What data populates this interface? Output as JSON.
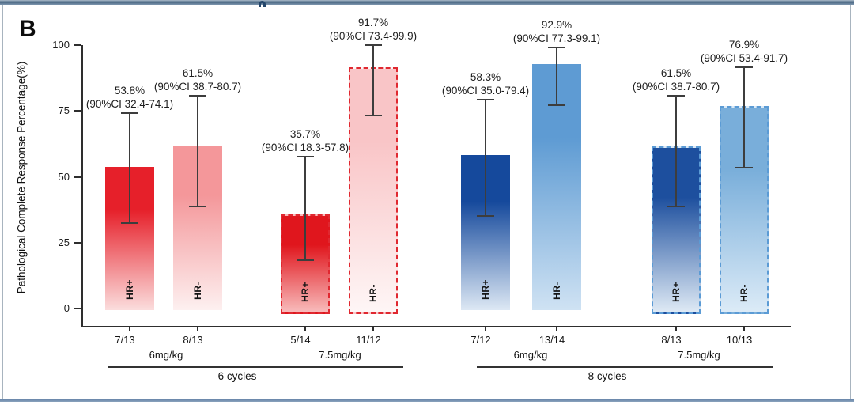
{
  "panel_label": "B",
  "frame": {
    "accent_color": "#5b7aa2",
    "artifact_note": "partially-cropped letter at top center"
  },
  "chart_data": {
    "type": "bar",
    "title": "",
    "xlabel": "",
    "ylabel": "Pathological Complete Response Percentage(%)",
    "ylim": [
      0,
      100
    ],
    "yticks": [
      0,
      25,
      50,
      75,
      100
    ],
    "grid": false,
    "legend": "none",
    "error_bar_color": "#3d3d3d",
    "ci_level": "90%CI",
    "bars": [
      {
        "group": "6 cycles",
        "dose": "6mg/kg",
        "hr_status": "HR+",
        "fraction": "7/13",
        "value_pct": 53.8,
        "ci_low": 32.4,
        "ci_high": 74.1,
        "value_label": "53.8%",
        "ci_label": "(90%CI 32.4-74.1)",
        "color_top": "#e6202a",
        "color_bottom": "#fbdddd",
        "dashed": false,
        "border_color": ""
      },
      {
        "group": "6 cycles",
        "dose": "6mg/kg",
        "hr_status": "HR-",
        "fraction": "8/13",
        "value_pct": 61.5,
        "ci_low": 38.7,
        "ci_high": 80.7,
        "value_label": "61.5%",
        "ci_label": "(90%CI 38.7-80.7)",
        "color_top": "#f4979a",
        "color_bottom": "#fdf0f0",
        "dashed": false,
        "border_color": ""
      },
      {
        "group": "6 cycles",
        "dose": "7.5mg/kg",
        "hr_status": "HR+",
        "fraction": "5/14",
        "value_pct": 35.7,
        "ci_low": 18.3,
        "ci_high": 57.8,
        "value_label": "35.7%",
        "ci_label": "(90%CI 18.3-57.8)",
        "color_top": "#e0161d",
        "color_bottom": "#f8bcbc",
        "dashed": true,
        "border_color": "#e02830"
      },
      {
        "group": "6 cycles",
        "dose": "7.5mg/kg",
        "hr_status": "HR-",
        "fraction": "11/12",
        "value_pct": 91.7,
        "ci_low": 73.4,
        "ci_high": 99.9,
        "value_label": "91.7%",
        "ci_label": "(90%CI 73.4-99.9)",
        "color_top": "#f9c5c7",
        "color_bottom": "#fef6f6",
        "dashed": true,
        "border_color": "#e02830"
      },
      {
        "group": "8 cycles",
        "dose": "6mg/kg",
        "hr_status": "HR+",
        "fraction": "7/12",
        "value_pct": 58.3,
        "ci_low": 35.0,
        "ci_high": 79.4,
        "value_label": "58.3%",
        "ci_label": "(90%CI 35.0-79.4)",
        "color_top": "#15499c",
        "color_bottom": "#dde8f4",
        "dashed": false,
        "border_color": ""
      },
      {
        "group": "8 cycles",
        "dose": "6mg/kg",
        "hr_status": "HR-",
        "fraction": "13/14",
        "value_pct": 92.9,
        "ci_low": 77.3,
        "ci_high": 99.1,
        "value_label": "92.9%",
        "ci_label": "(90%CI 77.3-99.1)",
        "color_top": "#5e9bd3",
        "color_bottom": "#cfe2f3",
        "dashed": false,
        "border_color": ""
      },
      {
        "group": "8 cycles",
        "dose": "7.5mg/kg",
        "hr_status": "HR+",
        "fraction": "8/13",
        "value_pct": 61.5,
        "ci_low": 38.7,
        "ci_high": 80.7,
        "value_label": "61.5%",
        "ci_label": "(90%CI 38.7-80.7)",
        "color_top": "#1d4f9e",
        "color_bottom": "#dfeaf5",
        "dashed": true,
        "border_color": "#5b9bd5"
      },
      {
        "group": "8 cycles",
        "dose": "7.5mg/kg",
        "hr_status": "HR-",
        "fraction": "10/13",
        "value_pct": 76.9,
        "ci_low": 53.4,
        "ci_high": 91.7,
        "value_label": "76.9%",
        "ci_label": "(90%CI 53.4-91.7)",
        "color_top": "#79aeda",
        "color_bottom": "#dcebf7",
        "dashed": true,
        "border_color": "#5b9bd5"
      }
    ],
    "dose_labels": [
      "6mg/kg",
      "7.5mg/kg",
      "6mg/kg",
      "7.5mg/kg"
    ],
    "cycle_labels": [
      "6 cycles",
      "8 cycles"
    ]
  }
}
